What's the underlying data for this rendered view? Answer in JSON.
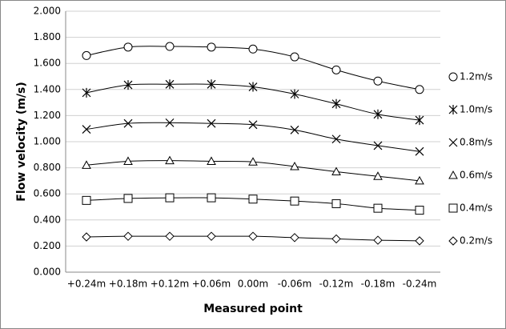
{
  "chart_data": {
    "type": "line",
    "xlabel": "Measured point",
    "ylabel": "Flow velocity (m/s)",
    "categories": [
      "+0.24m",
      "+0.18m",
      "+0.12m",
      "+0.06m",
      "0.00m",
      "-0.06m",
      "-0.12m",
      "-0.18m",
      "-0.24m"
    ],
    "ylim": [
      0,
      2
    ],
    "yticks": [
      {
        "value": 0,
        "label": "0.000"
      },
      {
        "value": 0.2,
        "label": "0.200"
      },
      {
        "value": 0.4,
        "label": "0.400"
      },
      {
        "value": 0.6,
        "label": "0.600"
      },
      {
        "value": 0.8,
        "label": "0.800"
      },
      {
        "value": 1,
        "label": "1.000"
      },
      {
        "value": 1.2,
        "label": "1.200"
      },
      {
        "value": 1.4,
        "label": "1.400"
      },
      {
        "value": 1.6,
        "label": "1.600"
      },
      {
        "value": 1.8,
        "label": "1.800"
      },
      {
        "value": 2,
        "label": "2.000"
      }
    ],
    "grid": true,
    "legend": "right",
    "series": [
      {
        "name": "1.2m/s",
        "color": "#000000",
        "marker": "circle",
        "values": [
          1.66,
          1.725,
          1.73,
          1.725,
          1.71,
          1.65,
          1.55,
          1.465,
          1.4
        ]
      },
      {
        "name": "1.0m/s",
        "color": "#000000",
        "marker": "asterisk",
        "values": [
          1.375,
          1.435,
          1.44,
          1.44,
          1.42,
          1.365,
          1.29,
          1.21,
          1.165
        ]
      },
      {
        "name": "0.8m/s",
        "color": "#000000",
        "marker": "x",
        "values": [
          1.095,
          1.14,
          1.145,
          1.14,
          1.13,
          1.09,
          1.02,
          0.97,
          0.925
        ]
      },
      {
        "name": "0.6m/s",
        "color": "#000000",
        "marker": "triangle",
        "values": [
          0.82,
          0.85,
          0.855,
          0.85,
          0.845,
          0.81,
          0.77,
          0.735,
          0.7
        ]
      },
      {
        "name": "0.4m/s",
        "color": "#000000",
        "marker": "square",
        "values": [
          0.55,
          0.565,
          0.57,
          0.57,
          0.56,
          0.545,
          0.525,
          0.49,
          0.475
        ]
      },
      {
        "name": "0.2m/s",
        "color": "#000000",
        "marker": "diamond",
        "values": [
          0.27,
          0.275,
          0.275,
          0.275,
          0.275,
          0.265,
          0.255,
          0.245,
          0.24
        ]
      }
    ]
  }
}
